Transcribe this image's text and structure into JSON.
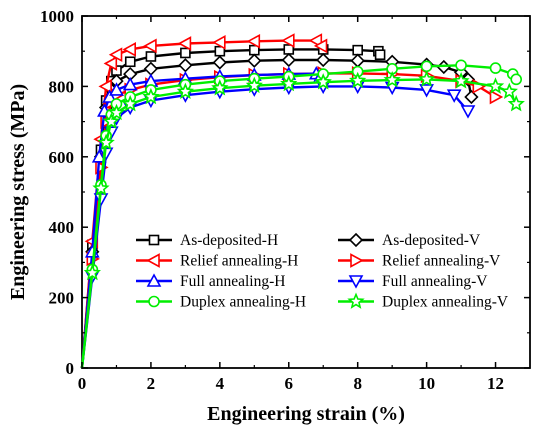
{
  "chart_data": {
    "type": "line",
    "xlabel": "Engineering strain (%)",
    "ylabel": "Engineering stress (MPa)",
    "xlim": [
      0,
      13
    ],
    "ylim": [
      0,
      1000
    ],
    "xticks": [
      0,
      2,
      4,
      6,
      8,
      10,
      12
    ],
    "yticks": [
      0,
      200,
      400,
      600,
      800,
      1000
    ],
    "grid": false,
    "legend_position": "lower-center",
    "series": [
      {
        "name": "As-deposited-H",
        "color": "#000000",
        "marker": "square",
        "x": [
          0,
          0.3,
          0.55,
          0.7,
          0.85,
          1.0,
          1.4,
          2,
          3,
          4,
          5,
          6,
          7,
          8,
          8.6,
          8.65
        ],
        "y": [
          0,
          350,
          620,
          760,
          815,
          845,
          870,
          885,
          895,
          900,
          903,
          905,
          905,
          903,
          900,
          890
        ]
      },
      {
        "name": "As-deposited-V",
        "color": "#000000",
        "marker": "diamond",
        "x": [
          0,
          0.3,
          0.55,
          0.7,
          0.85,
          1.0,
          1.4,
          2,
          3,
          4,
          5,
          6,
          7,
          8,
          9,
          10,
          10.5,
          11,
          11.2,
          11.3
        ],
        "y": [
          0,
          330,
          600,
          740,
          790,
          815,
          835,
          850,
          860,
          868,
          873,
          875,
          875,
          873,
          870,
          862,
          855,
          840,
          820,
          770
        ]
      },
      {
        "name": "Relief annealing-H",
        "color": "#ff0000",
        "marker": "triangle-left",
        "x": [
          0,
          0.3,
          0.55,
          0.7,
          0.85,
          1.0,
          1.4,
          2,
          3,
          4,
          5,
          6,
          6.8,
          6.95
        ],
        "y": [
          0,
          360,
          650,
          800,
          865,
          890,
          905,
          915,
          922,
          925,
          928,
          930,
          930,
          915
        ]
      },
      {
        "name": "Relief annealing-V",
        "color": "#ff0000",
        "marker": "triangle-right",
        "x": [
          0,
          0.3,
          0.55,
          0.7,
          0.85,
          1.0,
          1.4,
          2,
          3,
          4,
          5,
          6,
          7,
          8,
          9,
          10,
          11,
          11.5,
          12
        ],
        "y": [
          0,
          310,
          570,
          700,
          755,
          775,
          790,
          805,
          818,
          826,
          832,
          835,
          837,
          837,
          835,
          830,
          815,
          800,
          770
        ]
      },
      {
        "name": "Full annealing-H",
        "color": "#0000ff",
        "marker": "triangle-up",
        "x": [
          0,
          0.3,
          0.5,
          0.65,
          0.8,
          1.0,
          1.4,
          2,
          3,
          4,
          5,
          6,
          6.8,
          6.9
        ],
        "y": [
          0,
          330,
          600,
          730,
          770,
          790,
          805,
          815,
          822,
          828,
          832,
          835,
          836,
          825
        ]
      },
      {
        "name": "Full annealing-V",
        "color": "#0000ff",
        "marker": "triangle-down",
        "x": [
          0,
          0.3,
          0.55,
          0.7,
          0.85,
          1.0,
          1.4,
          2,
          3,
          4,
          5,
          6,
          7,
          8,
          9,
          10,
          10.8,
          11.2
        ],
        "y": [
          0,
          260,
          480,
          610,
          670,
          710,
          740,
          760,
          775,
          785,
          792,
          797,
          800,
          800,
          797,
          790,
          775,
          730
        ]
      },
      {
        "name": "Duplex annealing-H",
        "color": "#00ee00",
        "marker": "circle",
        "x": [
          0,
          0.3,
          0.55,
          0.7,
          0.85,
          1.0,
          1.4,
          2,
          3,
          4,
          5,
          6,
          7,
          8,
          9,
          10,
          11,
          12,
          12.5,
          12.6
        ],
        "y": [
          0,
          280,
          520,
          660,
          720,
          750,
          770,
          790,
          805,
          815,
          822,
          828,
          835,
          842,
          850,
          857,
          860,
          852,
          835,
          820
        ]
      },
      {
        "name": "Duplex annealing-V",
        "color": "#00ee00",
        "marker": "star",
        "x": [
          0,
          0.3,
          0.55,
          0.7,
          0.85,
          1.0,
          1.4,
          2,
          3,
          4,
          5,
          6,
          7,
          8,
          9,
          10,
          11,
          12,
          12.4,
          12.6
        ],
        "y": [
          0,
          270,
          510,
          640,
          700,
          725,
          750,
          770,
          785,
          795,
          802,
          807,
          812,
          816,
          818,
          820,
          815,
          800,
          785,
          750
        ]
      }
    ]
  }
}
